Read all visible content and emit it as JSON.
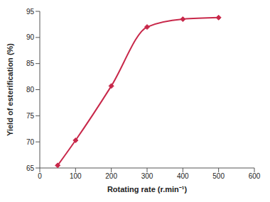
{
  "chart_data": {
    "type": "line",
    "xlabel": "Rotating rate (r.min⁻¹)",
    "ylabel": "Yield of esterification (%)",
    "x": [
      50,
      100,
      200,
      300,
      400,
      500
    ],
    "values": [
      65.5,
      70.3,
      80.7,
      92,
      93.5,
      93.8
    ],
    "color": "#c8284a",
    "marker": "diamond",
    "line_style": "solid",
    "xlim": [
      0,
      600
    ],
    "xticks": [
      0,
      100,
      200,
      300,
      400,
      500,
      600
    ],
    "ylim": [
      65,
      95
    ],
    "yticks": [
      65,
      70,
      75,
      80,
      85,
      90,
      95
    ],
    "grid": false
  }
}
